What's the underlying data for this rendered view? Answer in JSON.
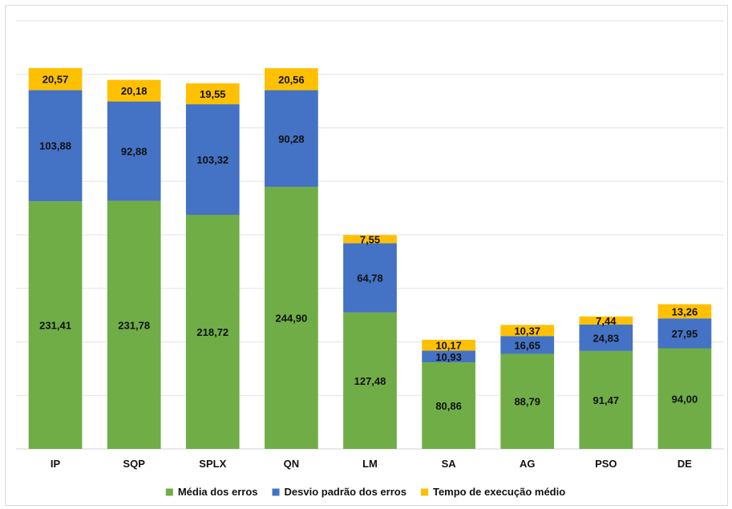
{
  "chart_data": {
    "type": "bar",
    "stacked": true,
    "categories": [
      "IP",
      "SQP",
      "SPLX",
      "QN",
      "LM",
      "SA",
      "AG",
      "PSO",
      "DE"
    ],
    "series": [
      {
        "name": "Média dos erros",
        "color": "#70ad47",
        "values": [
          231.41,
          231.78,
          218.72,
          244.9,
          127.48,
          80.86,
          88.79,
          91.47,
          94.0
        ],
        "labels": [
          "231,41",
          "231,78",
          "218,72",
          "244,90",
          "127,48",
          "80,86",
          "88,79",
          "91,47",
          "94,00"
        ]
      },
      {
        "name": "Desvio padrão dos erros",
        "color": "#4472c4",
        "values": [
          103.88,
          92.88,
          103.32,
          90.28,
          64.78,
          10.93,
          16.65,
          24.83,
          27.95
        ],
        "labels": [
          "103,88",
          "92,88",
          "103,32",
          "90,28",
          "64,78",
          "10,93",
          "16,65",
          "24,83",
          "27,95"
        ]
      },
      {
        "name": "Tempo de execução médio",
        "color": "#ffc000",
        "values": [
          20.57,
          20.18,
          19.55,
          20.56,
          7.55,
          10.17,
          10.37,
          7.44,
          13.26
        ],
        "labels": [
          "20,57",
          "20,18",
          "19,55",
          "20,56",
          "7,55",
          "10,17",
          "10,37",
          "7,44",
          "13,26"
        ]
      }
    ],
    "ylim": [
      0,
      400
    ],
    "y_gridlines": [
      0,
      50,
      100,
      150,
      200,
      250,
      300,
      350,
      400
    ],
    "grid": true,
    "y_tick_labels_shown": false,
    "legend_position": "bottom"
  }
}
